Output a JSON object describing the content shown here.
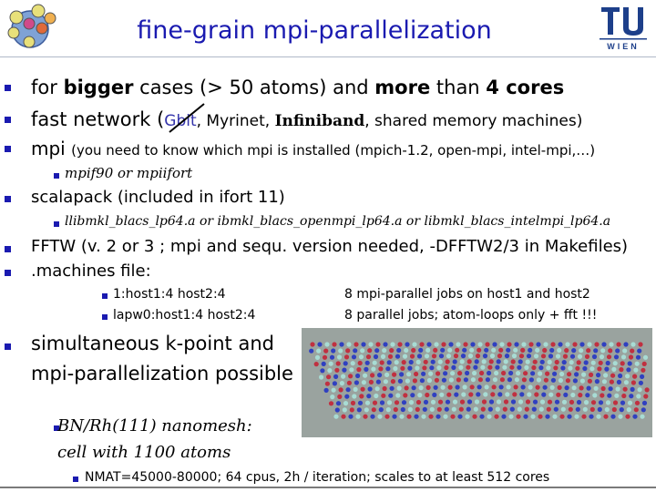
{
  "slide": {
    "title": "fine-grain mpi-parallelization",
    "logos": {
      "left": "WIEN2k",
      "right_top": "TU",
      "right_bottom": "WIEN"
    },
    "colors": {
      "title": "#1a1ab0",
      "bullet": "#1a1ab0"
    }
  },
  "bullets": {
    "b1": {
      "pre": "for ",
      "bold1": "bigger",
      "mid": " cases (> 50 atoms) and ",
      "bold2": "more",
      "mid2": " than ",
      "bold3": "4 cores"
    },
    "b2": {
      "pre": "fast network (",
      "gbit": "Gbit",
      "mid": ", Myrinet, ",
      "bold": "Infiniband",
      "post": ", shared memory machines)"
    },
    "b3": {
      "pre": "mpi ",
      "rest": "(you need to know which mpi is installed (mpich-1.2, open-mpi, intel-mpi,…)"
    },
    "b3_sub": "mpif90  or mpiifort",
    "b4": "scalapack (included in ifort 11)",
    "b4_sub": "llibmkl_blacs_lp64.a or ibmkl_blacs_openmpi_lp64.a  or libmkl_blacs_intelmpi_lp64.a",
    "b5": "FFTW (v. 2 or 3 ; mpi and sequ. version needed, -DFFTW2/3 in Makefiles)",
    "b6": ".machines file:",
    "machines": [
      {
        "line": "1:host1:4 host2:4",
        "note": "8 mpi-parallel jobs on host1 and host2"
      },
      {
        "line": "lapw0:host1:4  host2:4",
        "note": "8 parallel jobs;  atom-loops only + fft !!!"
      }
    ],
    "b7_line1": "simultaneous k-point and",
    "b7_line2": "mpi-parallelization possible",
    "b7_sub_line1": "BN/Rh(111)  nanomesh:",
    "b7_sub_line2": "cell with 1100 atoms",
    "b7_subsub": "NMAT=45000-80000;  64 cpus, 2h / iteration; scales to at least 512 cores"
  }
}
